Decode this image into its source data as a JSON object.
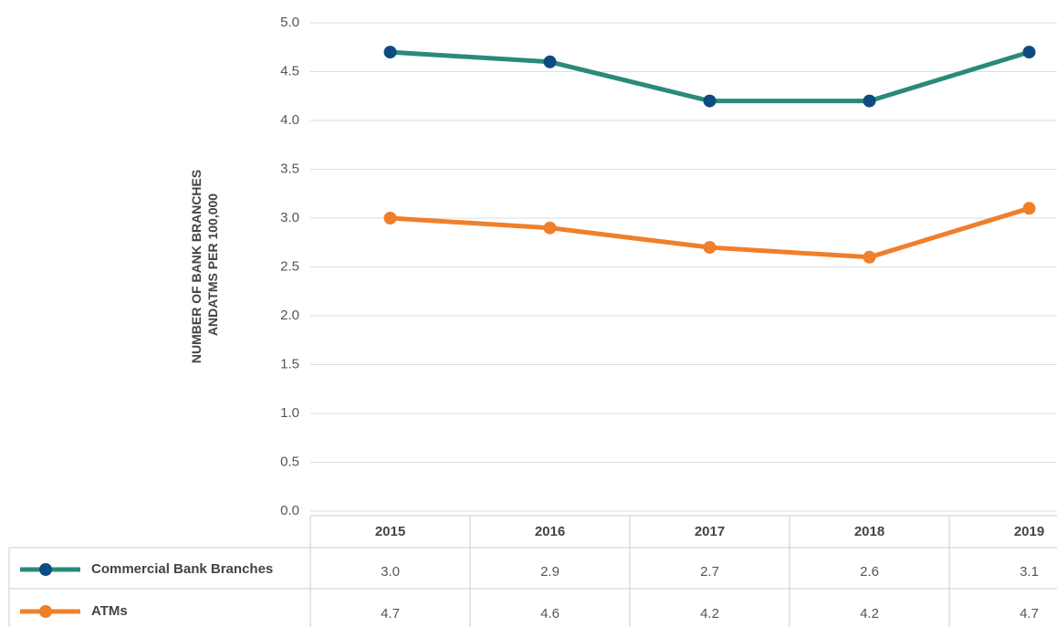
{
  "chart_data": {
    "type": "line",
    "ylabel": [
      "NUMBER OF BANK BRANCHES",
      "ANDATMS PER 100,000"
    ],
    "categories": [
      "2015",
      "2016",
      "2017",
      "2018",
      "2019"
    ],
    "series": [
      {
        "name": "Commercial Bank Branches",
        "color": "#f07f2a",
        "marker_color": "#f07f2a",
        "legend_color": "#2a8a7a",
        "legend_marker_color": "#0d4c80",
        "values": [
          3.0,
          2.9,
          2.7,
          2.6,
          3.1
        ],
        "value_labels": [
          "3.0",
          "2.9",
          "2.7",
          "2.6",
          "3.1"
        ]
      },
      {
        "name": "ATMs",
        "color": "#2a8a7a",
        "marker_color": "#0d4c80",
        "legend_color": "#f07f2a",
        "legend_marker_color": "#f07f2a",
        "values": [
          4.7,
          4.6,
          4.2,
          4.2,
          4.7
        ],
        "value_labels": [
          "4.7",
          "4.6",
          "4.2",
          "4.2",
          "4.7"
        ]
      }
    ],
    "ylim": [
      0,
      5
    ],
    "yticks": [
      {
        "value": 0,
        "label": "0.0"
      },
      {
        "value": 0.5,
        "label": "0.5"
      },
      {
        "value": 1,
        "label": "1.0"
      },
      {
        "value": 1.5,
        "label": "1.5"
      },
      {
        "value": 2,
        "label": "2.0"
      },
      {
        "value": 2.5,
        "label": "2.5"
      },
      {
        "value": 3,
        "label": "3.0"
      },
      {
        "value": 3.5,
        "label": "3.5"
      },
      {
        "value": 4,
        "label": "4.0"
      },
      {
        "value": 4.5,
        "label": "4.5"
      },
      {
        "value": 5,
        "label": "5.0"
      }
    ],
    "grid": true
  }
}
